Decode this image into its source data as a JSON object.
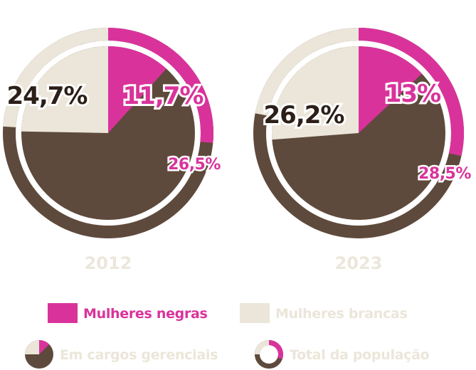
{
  "colors": {
    "negras": "#d9339b",
    "brancas": "#ebe6d9",
    "outras": "#5e4a3c",
    "dark_text": "#2b1f17",
    "year_text": "#ece7db"
  },
  "chart_data": [
    {
      "type": "pie",
      "year": "2012",
      "gerenciais": {
        "negras": 11.7,
        "brancas": 24.7,
        "negras_label": "11,7%",
        "brancas_label": "24,7%"
      },
      "populacao": {
        "negras": 26.5,
        "brancas": 24.0,
        "negras_label": "26,5%"
      }
    },
    {
      "type": "pie",
      "year": "2023",
      "gerenciais": {
        "negras": 13.0,
        "brancas": 26.2,
        "negras_label": "13%",
        "brancas_label": "26,2%"
      },
      "populacao": {
        "negras": 28.5,
        "brancas": 22.0,
        "negras_label": "28,5%"
      }
    }
  ],
  "legend": {
    "negras": "Mulheres negras",
    "brancas": "Mulheres brancas",
    "gerenciais": "Em cargos gerenciais",
    "populacao": "Total da população"
  }
}
